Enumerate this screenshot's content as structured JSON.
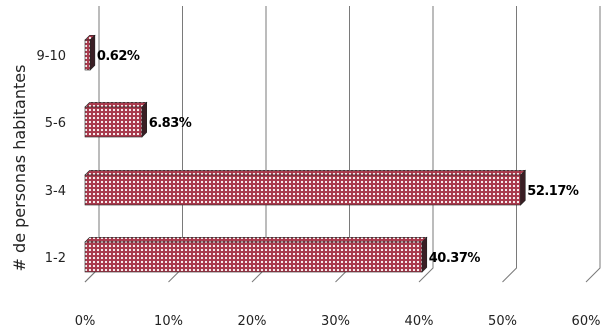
{
  "chart_data": {
    "type": "bar",
    "orientation": "horizontal",
    "style": "3d",
    "categories": [
      "9-10",
      "5-6",
      "3-4",
      "1-2"
    ],
    "values": [
      0.62,
      6.83,
      52.17,
      40.37
    ],
    "value_labels": [
      "0.62%",
      "6.83%",
      "52.17%",
      "40.37%"
    ],
    "title": "",
    "xlabel": "",
    "ylabel": "# de personas habitantes",
    "xlim": [
      0,
      60
    ],
    "x_ticks": [
      0,
      10,
      20,
      30,
      40,
      50,
      60
    ],
    "x_tick_labels": [
      "0%",
      "10%",
      "20%",
      "30%",
      "40%",
      "50%",
      "60%"
    ],
    "grid": "vertical",
    "legend": "none",
    "colors": {
      "bar_fill": "#a8394c",
      "bar_pattern_dots": "#ffffff",
      "bar_edge": "#222222",
      "bar_depth": "#3a1e24",
      "gridline": "#7a7a7a"
    }
  }
}
